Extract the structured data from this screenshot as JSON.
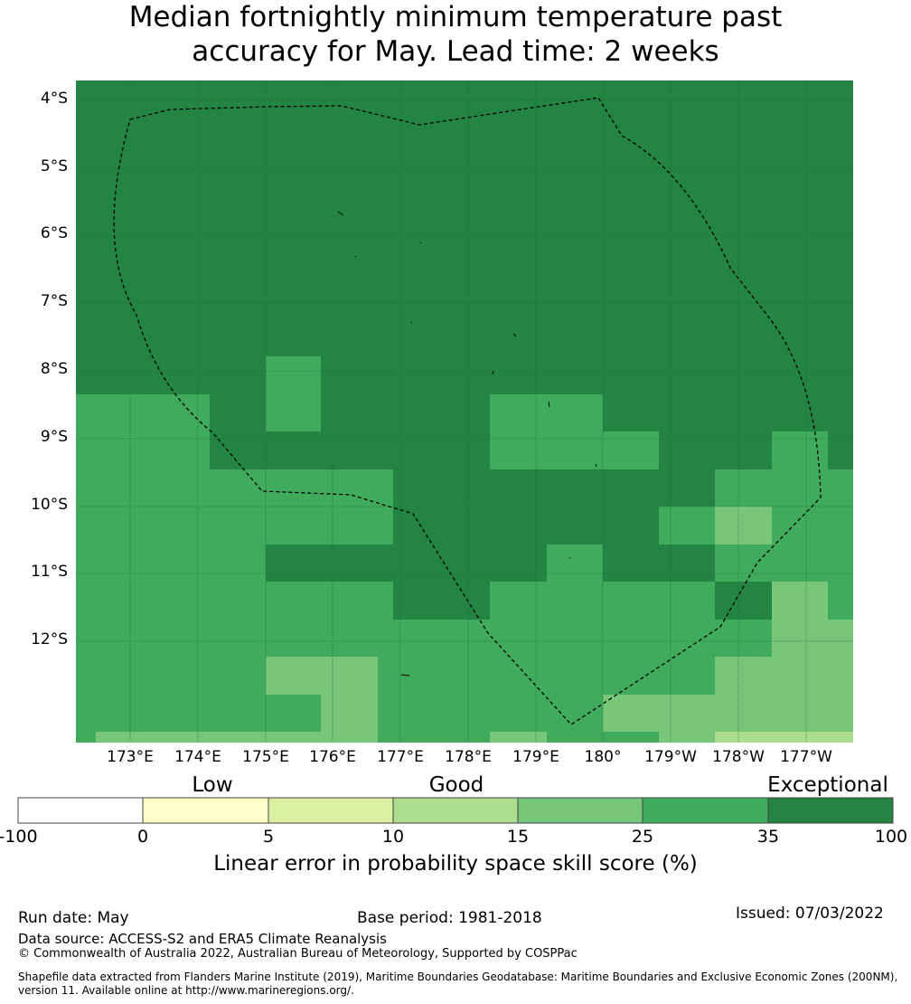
{
  "title": {
    "line1": "Median fortnightly minimum temperature past",
    "line2": "accuracy for May. Lead time: 2 weeks"
  },
  "map": {
    "lat_labels": [
      "4°S",
      "5°S",
      "6°S",
      "7°S",
      "8°S",
      "9°S",
      "10°S",
      "11°S",
      "12°S"
    ],
    "lon_labels": [
      "173°E",
      "174°E",
      "175°E",
      "176°E",
      "177°E",
      "178°E",
      "179°E",
      "180°",
      "179°W",
      "178°W",
      "177°W"
    ],
    "boundary": "dashed EEZ line",
    "grid": true
  },
  "legend": {
    "categories": [
      "Low",
      "Good",
      "Exceptional"
    ],
    "ticks": [
      "-100",
      "0",
      "5",
      "10",
      "15",
      "25",
      "35",
      "100"
    ],
    "colors": [
      "#ffffff",
      "#ffffcc",
      "#d9f0a3",
      "#addd8e",
      "#78c679",
      "#41ab5d",
      "#238443"
    ],
    "label": "Linear error in probability space skill score (%)"
  },
  "footer": {
    "run_date": "Run date: May",
    "base_period": "Base period: 1981-2018",
    "issued": "Issued: 07/03/2022",
    "data_source": "Data source: ACCESS-S2 and ERA5 Climate Reanalysis",
    "copyright": "© Commonwealth of Australia 2022, Australian Bureau of Meteorology, Supported by COSPPac",
    "shapefile1": "Shapefile data extracted from Flanders Marine Institute (2019), Maritime Boundaries Geodatabase: Maritime Boundaries and Exclusive Economic Zones (200NM),",
    "shapefile2": "version 11. Available online at http://www.marineregions.org/."
  }
}
